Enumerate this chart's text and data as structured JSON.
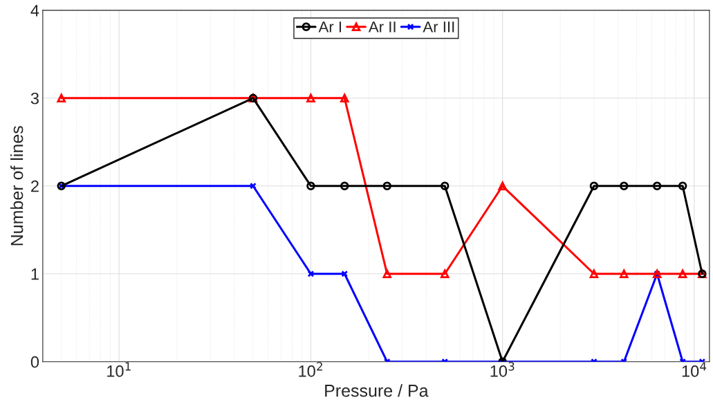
{
  "chart_data": {
    "type": "line",
    "xlabel": "Pressure / Pa",
    "ylabel": "Number of lines",
    "log": "x",
    "x": [
      5,
      50,
      100,
      150,
      250,
      500,
      1000,
      3000,
      4300,
      6400,
      8700,
      11000
    ],
    "series": [
      {
        "name": "Ar I",
        "color": "#000000",
        "marker": "circle",
        "values": [
          2,
          3,
          2,
          2,
          2,
          2,
          0,
          2,
          2,
          2,
          2,
          1
        ]
      },
      {
        "name": "Ar II",
        "color": "#ff0000",
        "marker": "triangle",
        "values": [
          3,
          3,
          3,
          3,
          1,
          1,
          2,
          1,
          1,
          1,
          1,
          1
        ]
      },
      {
        "name": "Ar III",
        "color": "#0000ff",
        "marker": "cross",
        "values": [
          2,
          2,
          1,
          1,
          0,
          0,
          0,
          0,
          0,
          1,
          0,
          0
        ]
      }
    ],
    "xlim": [
      4,
      12000
    ],
    "xticks": [
      {
        "value": 10,
        "label": "10$^{1}$"
      },
      {
        "value": 100,
        "label": "10$^{2}$"
      },
      {
        "value": 1000,
        "label": "10$^{3}$"
      },
      {
        "value": 10000,
        "label": "10$^{4}$"
      }
    ],
    "ylim": [
      0,
      4
    ],
    "yticks": [
      0,
      1,
      2,
      3,
      4
    ],
    "grid": true,
    "legend": "top",
    "line_style": "solid"
  }
}
